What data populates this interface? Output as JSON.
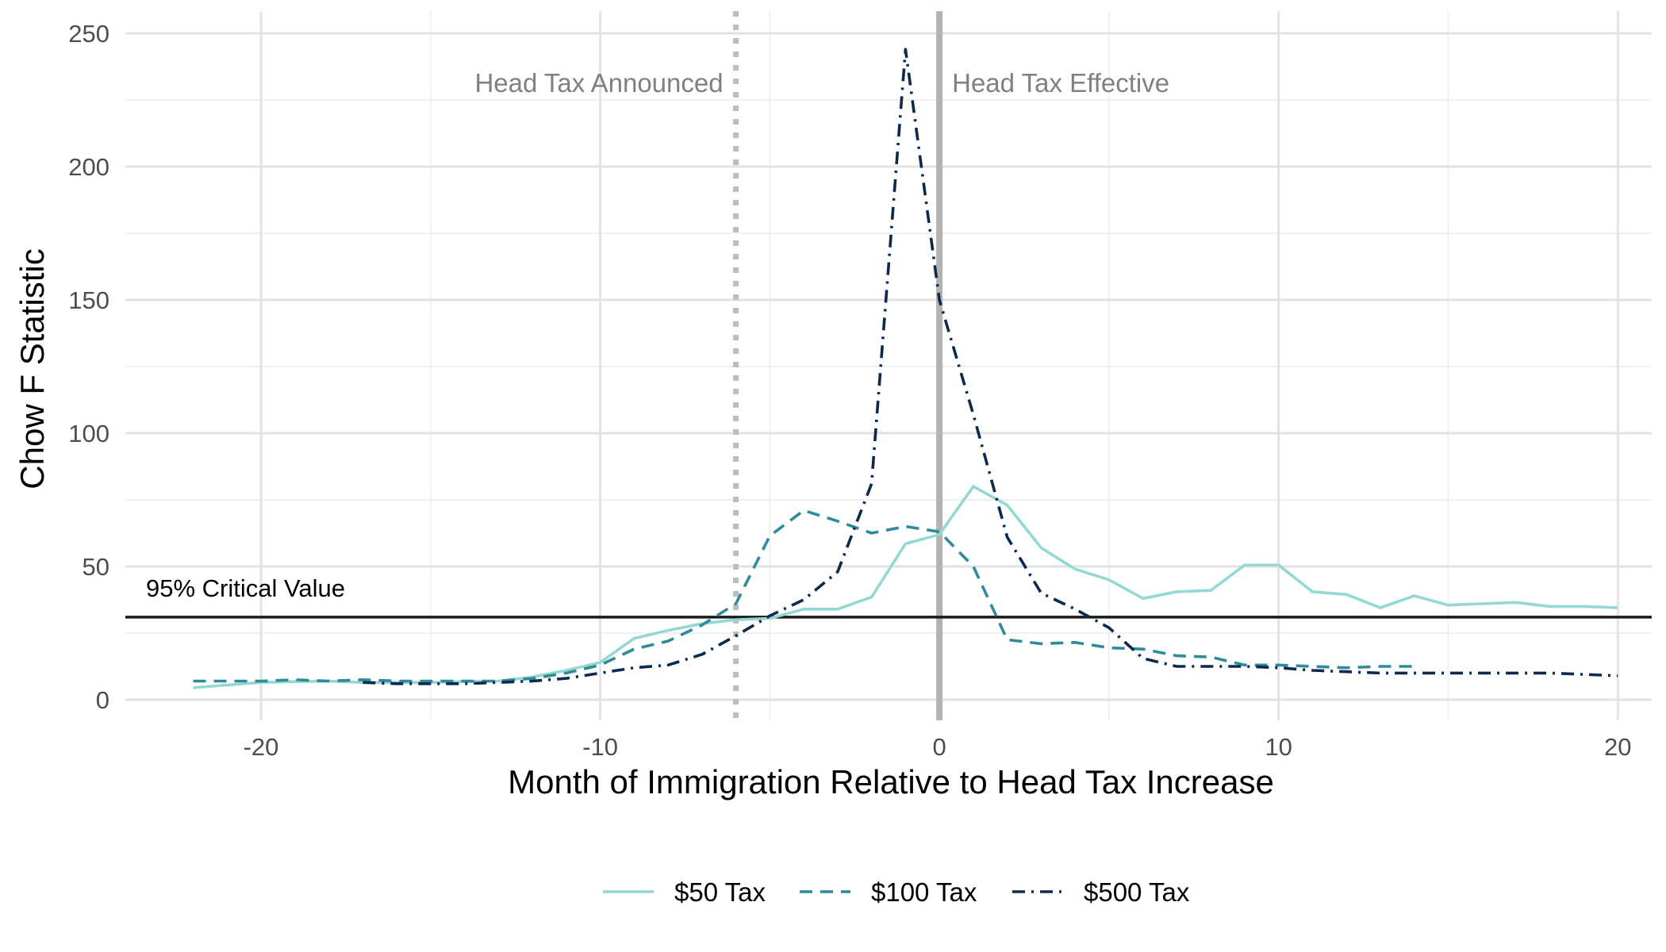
{
  "chart_data": {
    "type": "line",
    "title": "",
    "xlabel": "Month of Immigration Relative to Head Tax Increase",
    "ylabel": "Chow F Statistic",
    "xlim": [
      -24,
      21
    ],
    "ylim": [
      -5,
      250
    ],
    "x_ticks": [
      -20,
      -10,
      0,
      10,
      20
    ],
    "x_tick_labels": [
      "-20",
      "-10",
      "0",
      "10",
      "20"
    ],
    "y_ticks": [
      0,
      50,
      100,
      150,
      200,
      250
    ],
    "y_tick_labels": [
      "0",
      "50",
      "100",
      "150",
      "200",
      "250"
    ],
    "grid": true,
    "legend_position": "bottom",
    "reference_lines": [
      {
        "orientation": "vertical",
        "x": -6,
        "label": "Head Tax Announced",
        "style": "dotted",
        "color": "#bdbdbd"
      },
      {
        "orientation": "vertical",
        "x": 0,
        "label": "Head Tax Effective",
        "style": "solid",
        "color": "#b3b3b3"
      },
      {
        "orientation": "horizontal",
        "y": 31,
        "label": "95% Critical Value",
        "style": "solid",
        "color": "#1a1a1a"
      }
    ],
    "series": [
      {
        "name": "$50 Tax",
        "color": "#93d8d2",
        "dash": "solid",
        "x": [
          -22,
          -21,
          -20,
          -19,
          -18,
          -17,
          -16,
          -15,
          -14,
          -13,
          -12,
          -11,
          -10,
          -9,
          -8,
          -7,
          -6,
          -5,
          -4,
          -3,
          -2,
          -1,
          0,
          1,
          2,
          3,
          4,
          5,
          6,
          7,
          8,
          9,
          10,
          11,
          12,
          13,
          14,
          15,
          16,
          17,
          18,
          19,
          20
        ],
        "y": [
          4.5,
          5.5,
          6.5,
          6.8,
          7.0,
          6.5,
          6.5,
          6.5,
          6.8,
          7.0,
          8.5,
          11,
          14,
          23,
          26,
          28.5,
          30,
          30.5,
          34,
          34,
          38.5,
          58.5,
          62,
          80,
          73,
          57,
          49,
          45,
          38,
          40.5,
          41,
          50.5,
          50.5,
          40.5,
          39.5,
          34.5,
          39,
          35.5,
          36,
          36.5,
          35,
          35,
          34.5
        ]
      },
      {
        "name": "$100 Tax",
        "color": "#2e8b98",
        "dash": "dashed",
        "x": [
          -22,
          -21,
          -20,
          -19,
          -18,
          -17,
          -16,
          -15,
          -14,
          -13,
          -12,
          -11,
          -10,
          -9,
          -8,
          -7,
          -6,
          -5,
          -4,
          -3,
          -2,
          -1,
          0,
          1,
          2,
          3,
          4,
          5,
          6,
          7,
          8,
          9,
          10,
          11,
          12,
          13,
          14
        ],
        "y": [
          7,
          7,
          7,
          7.5,
          7,
          7.5,
          7,
          7,
          7,
          7,
          8,
          10,
          13,
          19,
          22,
          28,
          36,
          61.5,
          71,
          67,
          62.5,
          65,
          63,
          50,
          22.5,
          21,
          21.5,
          19.5,
          19,
          16.5,
          16,
          13,
          13,
          12.5,
          12,
          12.5,
          12.5
        ]
      },
      {
        "name": "$500 Tax",
        "color": "#0d2a4e",
        "dash": "dotdash",
        "x": [
          -17,
          -16,
          -15,
          -14,
          -13,
          -12,
          -11,
          -10,
          -9,
          -8,
          -7,
          -6,
          -5,
          -4,
          -3,
          -2,
          -1,
          0,
          1,
          2,
          3,
          4,
          5,
          6,
          7,
          8,
          9,
          10,
          11,
          12,
          13,
          14,
          15,
          16,
          17,
          18,
          19,
          20
        ],
        "y": [
          6.5,
          6,
          6,
          6,
          6.5,
          7,
          8,
          10,
          12,
          13,
          17,
          24,
          31.5,
          37.5,
          48,
          81,
          244,
          150,
          107,
          61,
          40,
          34,
          27,
          15.5,
          12.5,
          12.5,
          12.5,
          12,
          11,
          10.5,
          10,
          10,
          10,
          10,
          10,
          10,
          9.5,
          9
        ]
      }
    ]
  }
}
